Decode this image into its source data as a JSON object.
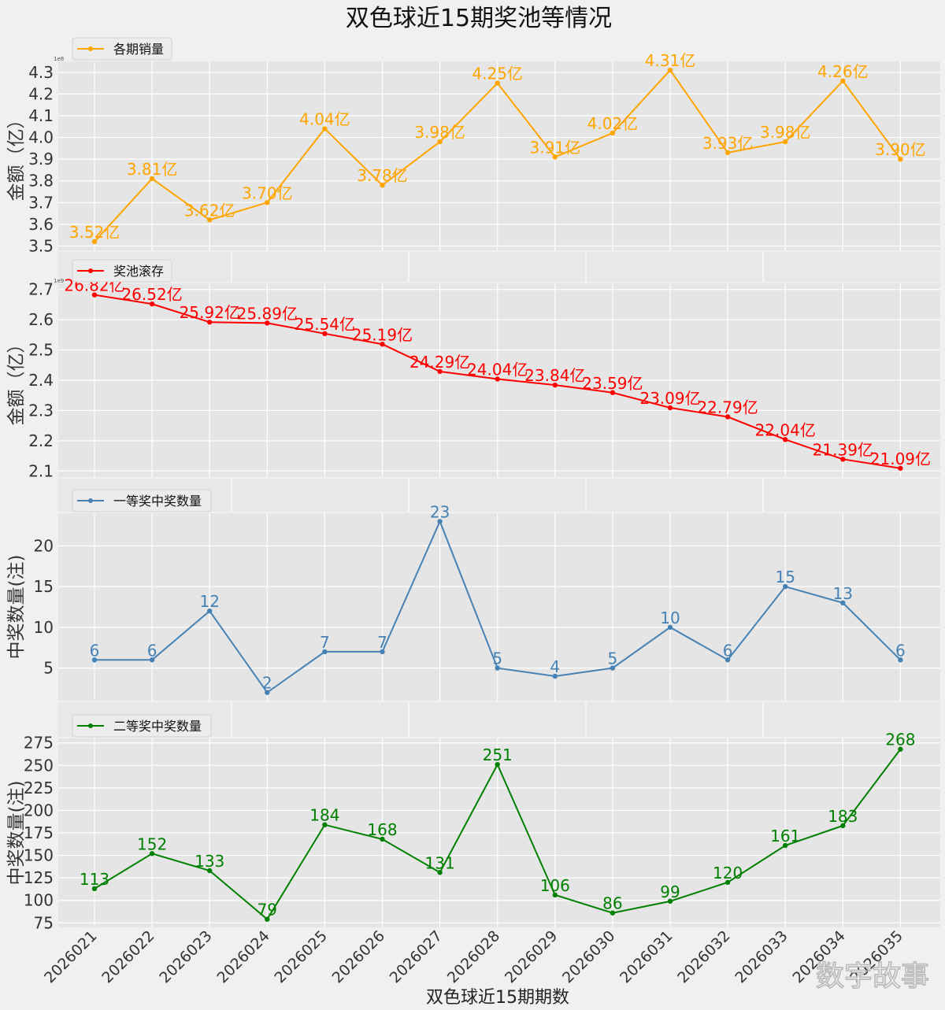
{
  "title": "双色球近15期奖池等情况",
  "xlabel": "双色球近15期期数",
  "watermark": "数字故事",
  "colors": {
    "sales": "#ffa500",
    "pool": "#ff0000",
    "first": "#4682b4",
    "second": "#008000"
  },
  "chart_data": [
    {
      "type": "line",
      "name": "sales",
      "legend": "各期销量",
      "ylabel": "金额（亿）",
      "offset_text": "1e8",
      "ylim": [
        3.48,
        4.35
      ],
      "yticks": [
        3.5,
        3.6,
        3.7,
        3.8,
        3.9,
        4.0,
        4.1,
        4.2,
        4.3
      ],
      "ytick_labels": [
        "3.5",
        "3.6",
        "3.7",
        "3.8",
        "3.9",
        "4.0",
        "4.1",
        "4.2",
        "4.3"
      ],
      "categories": [
        "2026021",
        "2026022",
        "2026023",
        "2026024",
        "2026025",
        "2026026",
        "2026027",
        "2026028",
        "2026029",
        "2026030",
        "2026031",
        "2026032",
        "2026033",
        "2026034",
        "2026035"
      ],
      "values": [
        3.52,
        3.81,
        3.62,
        3.7,
        4.04,
        3.78,
        3.98,
        4.25,
        3.91,
        4.02,
        4.31,
        3.93,
        3.98,
        4.26,
        3.9
      ],
      "labels": [
        "3.52亿",
        "3.81亿",
        "3.62亿",
        "3.70亿",
        "4.04亿",
        "3.78亿",
        "3.98亿",
        "4.25亿",
        "3.91亿",
        "4.02亿",
        "4.31亿",
        "3.93亿",
        "3.98亿",
        "4.26亿",
        "3.90亿"
      ]
    },
    {
      "type": "line",
      "name": "pool",
      "legend": "奖池滚存",
      "ylabel": "金额（亿）",
      "offset_text": "1e9",
      "ylim": [
        2.08,
        2.72
      ],
      "yticks": [
        2.1,
        2.2,
        2.3,
        2.4,
        2.5,
        2.6,
        2.7
      ],
      "ytick_labels": [
        "2.1",
        "2.2",
        "2.3",
        "2.4",
        "2.5",
        "2.6",
        "2.7"
      ],
      "categories": [
        "2026021",
        "2026022",
        "2026023",
        "2026024",
        "2026025",
        "2026026",
        "2026027",
        "2026028",
        "2026029",
        "2026030",
        "2026031",
        "2026032",
        "2026033",
        "2026034",
        "2026035"
      ],
      "values": [
        2.682,
        2.652,
        2.592,
        2.589,
        2.554,
        2.519,
        2.429,
        2.404,
        2.384,
        2.359,
        2.309,
        2.279,
        2.204,
        2.139,
        2.109
      ],
      "labels": [
        "26.82亿",
        "26.52亿",
        "25.92亿",
        "25.89亿",
        "25.54亿",
        "25.19亿",
        "24.29亿",
        "24.04亿",
        "23.84亿",
        "23.59亿",
        "23.09亿",
        "22.79亿",
        "22.04亿",
        "21.39亿",
        "21.09亿"
      ]
    },
    {
      "type": "line",
      "name": "first",
      "legend": "一等奖中奖数量",
      "ylabel": "中奖数量(注)",
      "offset_text": "",
      "ylim": [
        1.0,
        24.0
      ],
      "yticks": [
        5,
        10,
        15,
        20
      ],
      "ytick_labels": [
        "5",
        "10",
        "15",
        "20"
      ],
      "categories": [
        "2026021",
        "2026022",
        "2026023",
        "2026024",
        "2026025",
        "2026026",
        "2026027",
        "2026028",
        "2026029",
        "2026030",
        "2026031",
        "2026032",
        "2026033",
        "2026034",
        "2026035"
      ],
      "values": [
        6,
        6,
        12,
        2,
        7,
        7,
        23,
        5,
        4,
        5,
        10,
        6,
        15,
        13,
        6
      ],
      "labels": [
        "6",
        "6",
        "12",
        "2",
        "7",
        "7",
        "23",
        "5",
        "4",
        "5",
        "10",
        "6",
        "15",
        "13",
        "6"
      ]
    },
    {
      "type": "line",
      "name": "second",
      "legend": "二等奖中奖数量",
      "ylabel": "中奖数量(注)",
      "offset_text": "",
      "ylim": [
        70,
        280
      ],
      "yticks": [
        75,
        100,
        125,
        150,
        175,
        200,
        225,
        250,
        275
      ],
      "ytick_labels": [
        "75",
        "100",
        "125",
        "150",
        "175",
        "200",
        "225",
        "250",
        "275"
      ],
      "categories": [
        "2026021",
        "2026022",
        "2026023",
        "2026024",
        "2026025",
        "2026026",
        "2026027",
        "2026028",
        "2026029",
        "2026030",
        "2026031",
        "2026032",
        "2026033",
        "2026034",
        "2026035"
      ],
      "values": [
        113,
        152,
        133,
        79,
        184,
        168,
        131,
        251,
        106,
        86,
        99,
        120,
        161,
        183,
        268
      ],
      "labels": [
        "113",
        "152",
        "133",
        "79",
        "184",
        "168",
        "131",
        "251",
        "106",
        "86",
        "99",
        "120",
        "161",
        "183",
        "268"
      ]
    }
  ]
}
